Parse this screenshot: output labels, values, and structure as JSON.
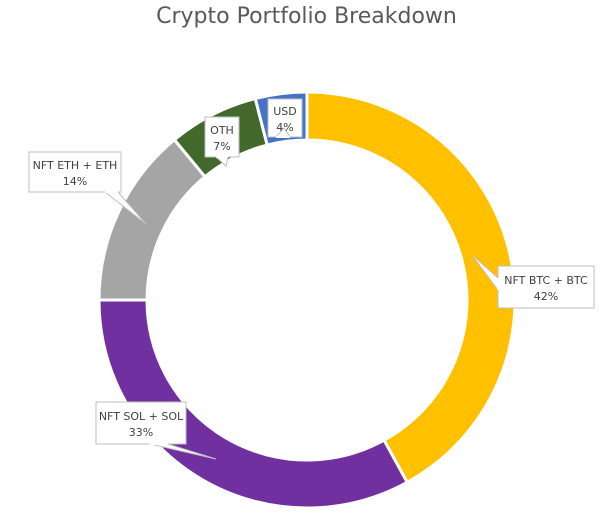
{
  "chart_data": {
    "type": "pie",
    "subtype": "doughnut",
    "title": "Crypto Portfolio Breakdown",
    "categories": [
      "NFT BTC + BTC",
      "NFT SOL + SOL",
      "NFT ETH + ETH",
      "OTH",
      "USD"
    ],
    "values": [
      42,
      33,
      14,
      7,
      4
    ],
    "labels": [
      "42%",
      "33%",
      "14%",
      "7%",
      "4%"
    ],
    "colors": [
      "#FFC000",
      "#7030A0",
      "#A5A5A5",
      "#43682B",
      "#4472C4"
    ],
    "legend": "none",
    "data_labels": "category and percentage in callouts"
  }
}
